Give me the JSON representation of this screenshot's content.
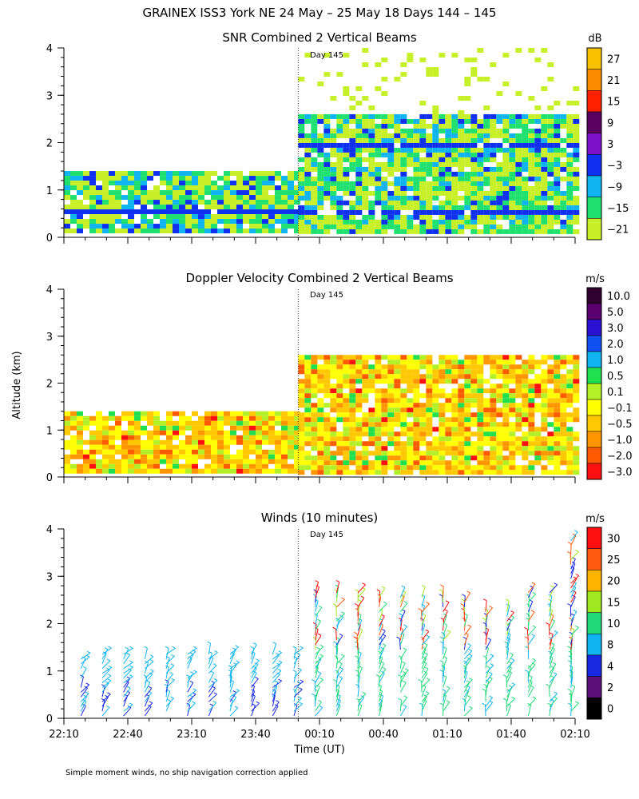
{
  "figure": {
    "title": "GRAINEX ISS3 York NE  24 May – 25 May 18 Days 144 – 145",
    "footer": "Simple moment winds, no ship navigation correction applied",
    "day_marker_label": "Day 145"
  },
  "chart_data": [
    {
      "type": "heatmap",
      "title": "SNR Combined 2 Vertical Beams",
      "xlabel": "",
      "ylabel": "",
      "x_range_minutes_from_2210": [
        0,
        240
      ],
      "ylim": [
        0,
        4
      ],
      "yticks": [
        0,
        1,
        2,
        3,
        4
      ],
      "day_boundary_minutes_from_2210": 110,
      "data_coverage": [
        {
          "x_minutes": [
            0,
            110
          ],
          "altitude_km": [
            0.1,
            1.4
          ]
        },
        {
          "x_minutes": [
            110,
            240
          ],
          "altitude_km": [
            0.1,
            2.6
          ]
        },
        {
          "x_minutes": [
            110,
            240
          ],
          "altitude_km": [
            2.6,
            4.0
          ],
          "note": "sparse"
        }
      ],
      "colorbar": {
        "unit": "dB",
        "labels": [
          "27",
          "21",
          "15",
          "9",
          "3",
          "−3",
          "−9",
          "−15",
          "−21"
        ],
        "colors": [
          "#f8c200",
          "#ff8c00",
          "#ff2000",
          "#5a0060",
          "#7a10c8",
          "#1030f0",
          "#10b4f0",
          "#20e070",
          "#c8f028"
        ]
      }
    },
    {
      "type": "heatmap",
      "title": "Doppler Velocity Combined 2 Vertical Beams",
      "xlabel": "",
      "ylabel": "Altitude (km)",
      "x_range_minutes_from_2210": [
        0,
        240
      ],
      "ylim": [
        0,
        4
      ],
      "yticks": [
        0,
        1,
        2,
        3,
        4
      ],
      "day_boundary_minutes_from_2210": 110,
      "data_coverage": [
        {
          "x_minutes": [
            0,
            110
          ],
          "altitude_km": [
            0.1,
            1.4
          ]
        },
        {
          "x_minutes": [
            110,
            240
          ],
          "altitude_km": [
            0.1,
            2.6
          ]
        }
      ],
      "colorbar": {
        "unit": "m/s",
        "labels": [
          "10.0",
          "5.0",
          "3.0",
          "2.0",
          "1.0",
          "0.5",
          "0.1",
          "−0.1",
          "−0.5",
          "−1.0",
          "−2.0",
          "−3.0"
        ],
        "colors": [
          "#300030",
          "#5a0070",
          "#2a10d0",
          "#1050f0",
          "#10b4f0",
          "#20e050",
          "#b4f028",
          "#ffff00",
          "#ffc800",
          "#ff9600",
          "#ff5a00",
          "#ff1010"
        ]
      }
    },
    {
      "type": "scatter",
      "title": "Winds (10 minutes)",
      "xlabel": "Time (UT)",
      "ylabel": "",
      "x_range_minutes_from_2210": [
        0,
        240
      ],
      "ylim": [
        0,
        4
      ],
      "yticks": [
        0,
        1,
        2,
        3,
        4
      ],
      "xticks": [
        "22:10",
        "22:40",
        "23:10",
        "23:40",
        "00:10",
        "00:40",
        "01:10",
        "01:40",
        "02:10"
      ],
      "xtick_minutes": [
        0,
        30,
        60,
        90,
        120,
        150,
        180,
        210,
        240
      ],
      "day_boundary_minutes_from_2210": 110,
      "profile_minutes": [
        5,
        15,
        25,
        35,
        45,
        55,
        65,
        75,
        85,
        95,
        105,
        115,
        125,
        135,
        145,
        155,
        165,
        175,
        185,
        195,
        205,
        215,
        225,
        235
      ],
      "profile_top_km": [
        1.45,
        1.45,
        1.45,
        1.45,
        1.45,
        1.45,
        1.45,
        1.45,
        1.45,
        1.45,
        1.45,
        2.75,
        2.7,
        2.7,
        2.6,
        2.65,
        2.6,
        2.6,
        2.5,
        2.3,
        2.3,
        2.75,
        2.7,
        3.8
      ],
      "colorbar": {
        "unit": "m/s",
        "labels": [
          "30",
          "25",
          "20",
          "15",
          "10",
          "8",
          "4",
          "2",
          "0"
        ],
        "colors": [
          "#ff1010",
          "#ff5a10",
          "#ffb400",
          "#a0e820",
          "#20d878",
          "#10b4f0",
          "#1828e0",
          "#5a1078",
          "#000000"
        ]
      }
    }
  ]
}
